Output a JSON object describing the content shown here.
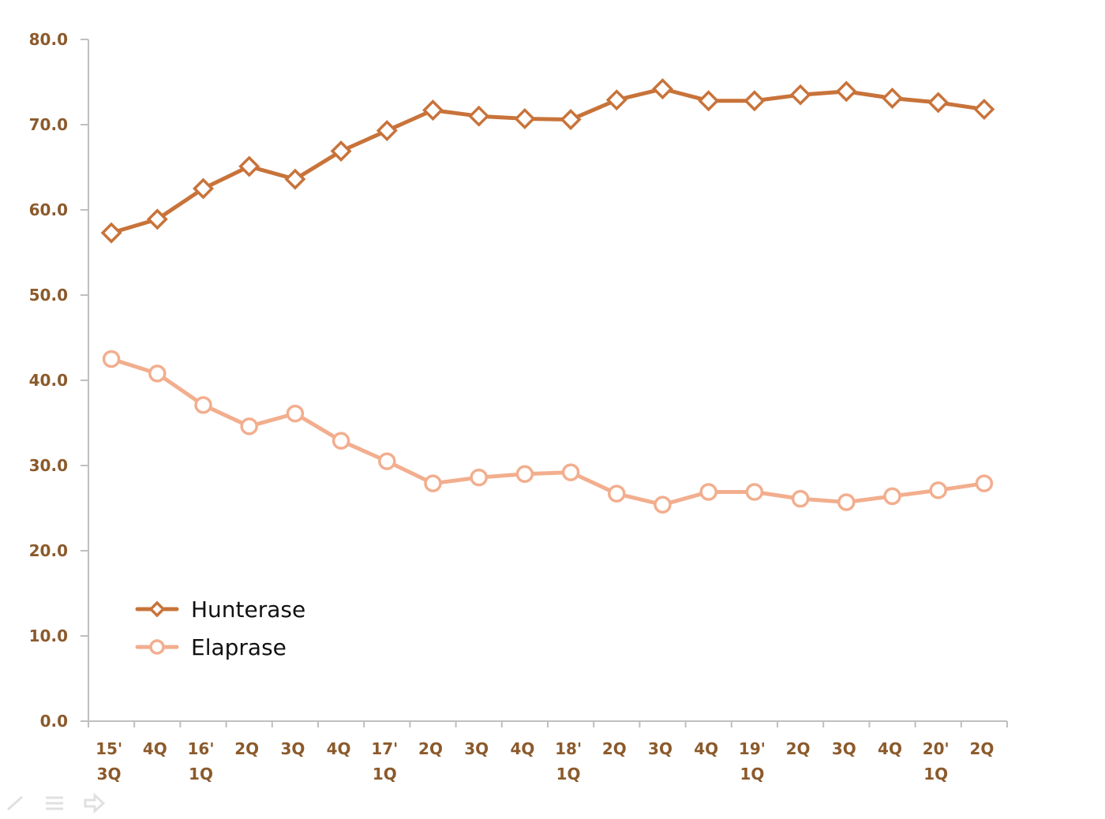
{
  "chart_data": {
    "type": "line",
    "categories": [
      [
        "15'",
        "3Q"
      ],
      [
        "4Q"
      ],
      [
        "16'",
        "1Q"
      ],
      [
        "2Q"
      ],
      [
        "3Q"
      ],
      [
        "4Q"
      ],
      [
        "17'",
        "1Q"
      ],
      [
        "2Q"
      ],
      [
        "3Q"
      ],
      [
        "4Q"
      ],
      [
        "18'",
        "1Q"
      ],
      [
        "2Q"
      ],
      [
        "3Q"
      ],
      [
        "4Q"
      ],
      [
        "19'",
        "1Q"
      ],
      [
        "2Q"
      ],
      [
        "3Q"
      ],
      [
        "4Q"
      ],
      [
        "20'",
        "1Q"
      ],
      [
        "2Q"
      ]
    ],
    "series": [
      {
        "name": "Hunterase",
        "color": "#C8733A",
        "marker": "diamond",
        "values": [
          57.3,
          58.9,
          62.5,
          65.1,
          63.6,
          66.9,
          69.3,
          71.7,
          71.0,
          70.7,
          70.6,
          72.9,
          74.2,
          72.8,
          72.8,
          73.5,
          73.9,
          73.1,
          72.6,
          71.8
        ]
      },
      {
        "name": "Elaprase",
        "color": "#F2AE8E",
        "marker": "circle",
        "values": [
          42.5,
          40.8,
          37.1,
          34.6,
          36.1,
          32.9,
          30.5,
          27.9,
          28.6,
          29.0,
          29.2,
          26.7,
          25.4,
          26.9,
          26.9,
          26.1,
          25.7,
          26.4,
          27.1,
          27.9
        ]
      }
    ],
    "yticks": [
      "0.0",
      "10.0",
      "20.0",
      "30.0",
      "40.0",
      "50.0",
      "60.0",
      "70.0",
      "80.0"
    ],
    "ylim": [
      0,
      80
    ],
    "title": "",
    "xlabel": "",
    "ylabel": "",
    "grid": false,
    "legend": "bottom-left",
    "axis_color": "#BFBFBF",
    "tick_label_color": "#8B5A2B"
  },
  "toolbar": {
    "icons": [
      "pen-icon",
      "menu-icon",
      "arrow-right-icon"
    ]
  }
}
